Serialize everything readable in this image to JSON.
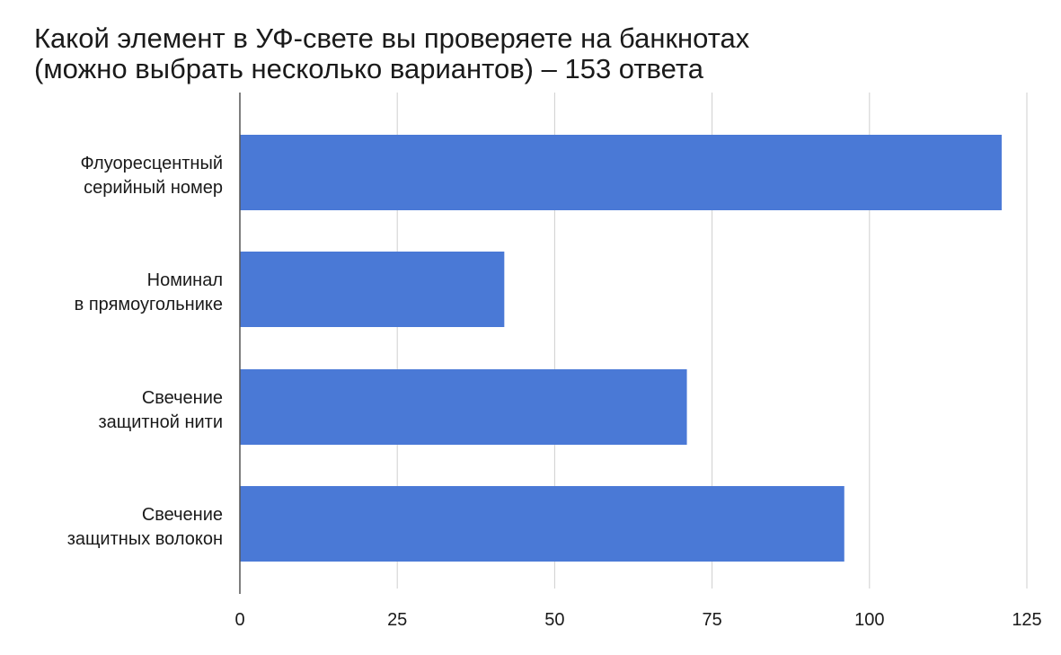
{
  "chart_data": {
    "type": "bar",
    "orientation": "horizontal",
    "title": "Какой элемент в УФ-свете вы проверяете на банкнотах (можно выбрать несколько вариантов) – 153 ответа",
    "title_lines": [
      "Какой элемент в УФ-свете вы проверяете на банкнотах",
      "(можно выбрать несколько вариантов) – 153 ответа"
    ],
    "categories": [
      [
        "Флуоресцентный",
        "серийный номер"
      ],
      [
        "Номинал",
        "в прямоугольнике"
      ],
      [
        "Свечение",
        "защитной нити"
      ],
      [
        "Свечение",
        "защитных волокон"
      ]
    ],
    "values": [
      121,
      42,
      71,
      96
    ],
    "xlim": [
      0,
      125
    ],
    "xticks": [
      "0",
      "25",
      "50",
      "75",
      "100",
      "125"
    ],
    "xtick_values": [
      0,
      25,
      50,
      75,
      100,
      125
    ],
    "grid": true,
    "colors": {
      "bar": "#4a79d6",
      "grid": "#cfcfcf",
      "axis": "#555555"
    }
  }
}
